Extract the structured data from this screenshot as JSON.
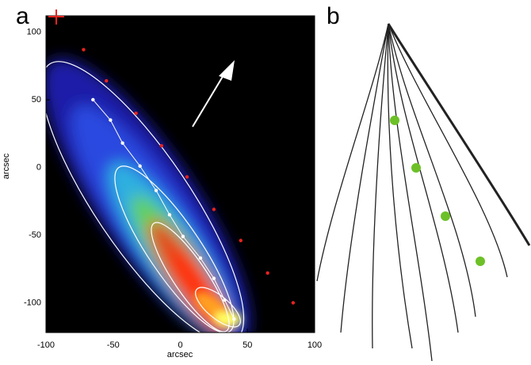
{
  "chart_data": [
    {
      "type": "scatter",
      "panel": "a",
      "xlabel": "arcsec",
      "ylabel": "arcsec",
      "xlim": [
        -100,
        100
      ],
      "ylim": [
        -122,
        112
      ],
      "xticks": [
        -100,
        -50,
        0,
        50,
        100
      ],
      "yticks": [
        -100,
        -50,
        0,
        50,
        100
      ],
      "series": [
        {
          "color": "#e8231e",
          "line": false,
          "x": [
            -72,
            -55,
            -33,
            -14,
            5,
            25,
            45,
            65,
            84
          ],
          "values": [
            87,
            64,
            40,
            16,
            -7,
            -31,
            -54,
            -78,
            -100
          ]
        },
        {
          "color": "#ffffff",
          "line": true,
          "x": [
            -65,
            -52,
            -43,
            -30,
            -18,
            -8,
            2,
            15,
            25,
            33,
            40
          ],
          "values": [
            50,
            35,
            18,
            1,
            -17,
            -35,
            -51,
            -67,
            -82,
            -98,
            -112
          ]
        }
      ]
    },
    {
      "type": "drawing",
      "panel": "b"
    }
  ]
}
